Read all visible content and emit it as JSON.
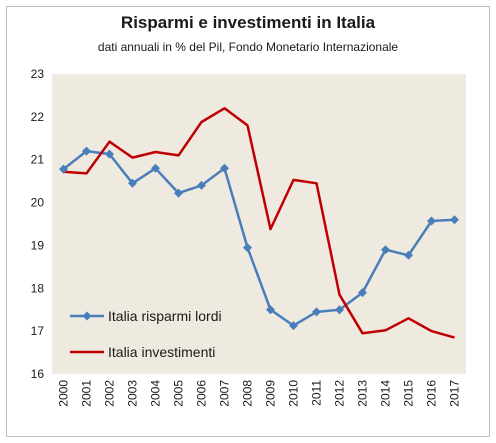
{
  "chart_data": {
    "type": "line",
    "title": "Risparmi e investimenti in Italia",
    "subtitle": "dati annuali in % del Pil, Fondo Monetario Internazionale",
    "x": [
      "2000",
      "2001",
      "2002",
      "2003",
      "2004",
      "2005",
      "2006",
      "2007",
      "2008",
      "2009",
      "2010",
      "2011",
      "2012",
      "2013",
      "2014",
      "2015",
      "2016",
      "2017"
    ],
    "ylim": [
      16,
      23
    ],
    "yticks": [
      "16",
      "17",
      "18",
      "19",
      "20",
      "21",
      "22",
      "23"
    ],
    "grid": false,
    "legend_position": "bottom-left",
    "plot_background": "#efeae0",
    "series": [
      {
        "name": "Italia risparmi lordi",
        "color": "#4a7ebb",
        "marker": "diamond",
        "values": [
          20.78,
          21.2,
          21.13,
          20.45,
          20.8,
          20.22,
          20.4,
          20.8,
          18.95,
          17.5,
          17.13,
          17.45,
          17.5,
          17.9,
          18.9,
          18.77,
          19.57,
          19.6
        ]
      },
      {
        "name": "Italia investimenti",
        "color": "#c00000",
        "marker": "none",
        "values": [
          20.72,
          20.68,
          21.42,
          21.05,
          21.18,
          21.1,
          21.88,
          22.2,
          21.8,
          19.38,
          20.53,
          20.45,
          17.85,
          16.95,
          17.02,
          17.3,
          17.0,
          16.85
        ]
      }
    ]
  }
}
